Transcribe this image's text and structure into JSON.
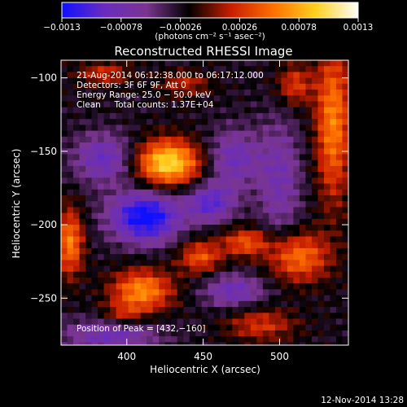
{
  "chart_data": {
    "type": "heatmap",
    "title": "Reconstructed RHESSI Image",
    "xlabel": "Heliocentric X (arcsec)",
    "ylabel": "Heliocentric Y (arcsec)",
    "xlim": [
      357,
      545
    ],
    "ylim": [
      -282,
      -88
    ],
    "x_ticks": [
      {
        "value": 400,
        "label": "400"
      },
      {
        "value": 450,
        "label": "450"
      },
      {
        "value": 500,
        "label": "500"
      }
    ],
    "y_ticks": [
      {
        "value": -100,
        "label": "−100"
      },
      {
        "value": -150,
        "label": "−150"
      },
      {
        "value": -200,
        "label": "−200"
      },
      {
        "value": -250,
        "label": "−250"
      }
    ],
    "colorbar": {
      "range": [
        -0.0013,
        0.0013
      ],
      "ticks": [
        {
          "value": -0.0013,
          "label": "−0.0013"
        },
        {
          "value": -0.00078,
          "label": "−0.00078"
        },
        {
          "value": -0.00026,
          "label": "−0.00026"
        },
        {
          "value": 0.00026,
          "label": "0.00026"
        },
        {
          "value": 0.00078,
          "label": "0.00078"
        },
        {
          "value": 0.0013,
          "label": "0.0013"
        }
      ],
      "unit_label": "(photons cm⁻² s⁻¹ asec⁻²)",
      "colors": [
        "#1010ff",
        "#6a2cc0",
        "#7a3590",
        "#000000",
        "#c81e00",
        "#ff7000",
        "#ffd020",
        "#ffffff"
      ]
    },
    "annotations": [
      "21‑Aug‑2014 06:12:38.000 to 06:17:12.000",
      "Detectors: 3F 6F 9F, Att 0",
      "Energy Range: 25.0 − 50.0 keV",
      "Clean     Total counts: 1.37E+04"
    ],
    "peak_label": "Position of Peak = [432,−160]",
    "peak": [
      432,
      -160
    ],
    "sources": [
      {
        "x": 427,
        "y": -158,
        "sx": 15,
        "sy": 11,
        "amp": 0.00125
      },
      {
        "x": 363,
        "y": -212,
        "sx": 6,
        "sy": 16,
        "amp": 0.00085
      },
      {
        "x": 410,
        "y": -245,
        "sx": 14,
        "sy": 10,
        "amp": 0.0009
      },
      {
        "x": 448,
        "y": -222,
        "sx": 10,
        "sy": 8,
        "amp": 0.00065
      },
      {
        "x": 478,
        "y": -212,
        "sx": 11,
        "sy": 7,
        "amp": 0.00065
      },
      {
        "x": 512,
        "y": -222,
        "sx": 14,
        "sy": 12,
        "amp": 0.0008
      },
      {
        "x": 535,
        "y": -130,
        "sx": 8,
        "sy": 38,
        "amp": 0.00085
      },
      {
        "x": 510,
        "y": -105,
        "sx": 8,
        "sy": 10,
        "amp": 0.00055
      },
      {
        "x": 385,
        "y": -97,
        "sx": 12,
        "sy": 6,
        "amp": 0.00045
      },
      {
        "x": 438,
        "y": -104,
        "sx": 12,
        "sy": 6,
        "amp": 0.0004
      },
      {
        "x": 488,
        "y": -268,
        "sx": 16,
        "sy": 8,
        "amp": 0.0005
      },
      {
        "x": 398,
        "y": -262,
        "sx": 10,
        "sy": 6,
        "amp": 0.0004
      },
      {
        "x": 412,
        "y": -195,
        "sx": 16,
        "sy": 12,
        "amp": -0.00115
      },
      {
        "x": 455,
        "y": -185,
        "sx": 11,
        "sy": 9,
        "amp": -0.00075
      },
      {
        "x": 470,
        "y": -155,
        "sx": 12,
        "sy": 14,
        "amp": -0.0006
      },
      {
        "x": 385,
        "y": -155,
        "sx": 14,
        "sy": 12,
        "amp": -0.00065
      },
      {
        "x": 470,
        "y": -245,
        "sx": 14,
        "sy": 8,
        "amp": -0.0006
      },
      {
        "x": 390,
        "y": -275,
        "sx": 22,
        "sy": 8,
        "amp": -0.0006
      },
      {
        "x": 500,
        "y": -170,
        "sx": 10,
        "sy": 30,
        "amp": -0.0005
      }
    ],
    "background": -0.0007
  },
  "footer_timestamp": "12‑Nov‑2014 13:28"
}
